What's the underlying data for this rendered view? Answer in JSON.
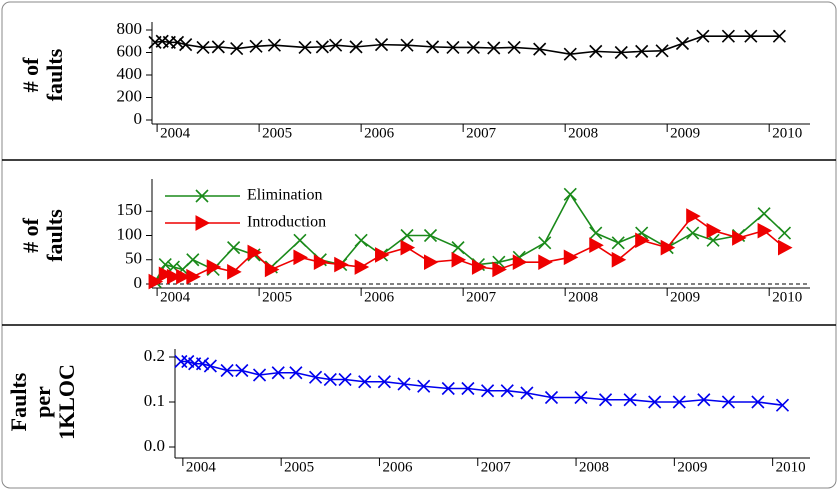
{
  "chart_data": [
    {
      "type": "line",
      "ylabel": [
        "# of",
        "faults"
      ],
      "x": [
        2003.98,
        2004.05,
        2004.12,
        2004.2,
        2004.28,
        2004.45,
        2004.6,
        2004.78,
        2004.97,
        2005.15,
        2005.45,
        2005.62,
        2005.75,
        2005.95,
        2006.2,
        2006.45,
        2006.7,
        2006.9,
        2007.1,
        2007.3,
        2007.5,
        2007.75,
        2008.05,
        2008.3,
        2008.55,
        2008.75,
        2008.95,
        2009.15,
        2009.35,
        2009.6,
        2009.82,
        2010.1
      ],
      "series": [
        {
          "name": null,
          "color": "#000000",
          "marker": "x",
          "values": [
            690,
            700,
            690,
            690,
            670,
            645,
            650,
            635,
            655,
            665,
            645,
            650,
            665,
            650,
            670,
            665,
            650,
            645,
            645,
            640,
            645,
            630,
            585,
            610,
            600,
            610,
            615,
            680,
            745,
            745,
            745,
            745
          ]
        }
      ],
      "xlim": [
        2003.95,
        2010.4
      ],
      "xticks": [
        2004,
        2005,
        2006,
        2007,
        2008,
        2009,
        2010
      ],
      "ylim": [
        0,
        800
      ],
      "yticks": [
        0,
        200,
        400,
        600,
        800
      ]
    },
    {
      "type": "line",
      "ylabel": [
        "# of",
        "faults"
      ],
      "x": [
        2003.98,
        2004.08,
        2004.16,
        2004.25,
        2004.35,
        2004.55,
        2004.75,
        2004.95,
        2005.12,
        2005.4,
        2005.6,
        2005.8,
        2006.0,
        2006.2,
        2006.45,
        2006.68,
        2006.95,
        2007.15,
        2007.35,
        2007.55,
        2007.8,
        2008.05,
        2008.3,
        2008.52,
        2008.75,
        2009.0,
        2009.25,
        2009.45,
        2009.7,
        2009.95,
        2010.15
      ],
      "series": [
        {
          "name": "Elimination",
          "color": "#1a8a1a",
          "marker": "x",
          "values": [
            5,
            40,
            35,
            30,
            50,
            30,
            75,
            60,
            35,
            90,
            50,
            40,
            90,
            60,
            100,
            100,
            75,
            40,
            45,
            55,
            85,
            185,
            105,
            85,
            105,
            75,
            105,
            90,
            100,
            145,
            105
          ]
        },
        {
          "name": "Introduction",
          "color": "#ee0000",
          "marker": "triangle",
          "values": [
            5,
            20,
            15,
            15,
            15,
            35,
            25,
            65,
            30,
            55,
            45,
            40,
            35,
            60,
            75,
            45,
            50,
            35,
            30,
            45,
            45,
            55,
            80,
            50,
            90,
            75,
            140,
            110,
            95,
            110,
            75
          ]
        }
      ],
      "xlim": [
        2003.95,
        2010.4
      ],
      "xticks": [
        2004,
        2005,
        2006,
        2007,
        2008,
        2009,
        2010
      ],
      "ylim": [
        0,
        200
      ],
      "yticks": [
        0,
        50,
        100,
        150
      ]
    },
    {
      "type": "line",
      "ylabel": [
        "Faults",
        "per",
        "1KLOC"
      ],
      "x": [
        2003.98,
        2004.05,
        2004.12,
        2004.2,
        2004.28,
        2004.45,
        2004.6,
        2004.78,
        2004.97,
        2005.15,
        2005.35,
        2005.5,
        2005.65,
        2005.85,
        2006.05,
        2006.25,
        2006.45,
        2006.7,
        2006.9,
        2007.1,
        2007.3,
        2007.5,
        2007.75,
        2008.05,
        2008.3,
        2008.55,
        2008.8,
        2009.05,
        2009.3,
        2009.55,
        2009.85,
        2010.1
      ],
      "series": [
        {
          "name": null,
          "color": "#0000ee",
          "marker": "x",
          "values": [
            0.19,
            0.19,
            0.185,
            0.185,
            0.18,
            0.17,
            0.17,
            0.16,
            0.165,
            0.165,
            0.155,
            0.15,
            0.15,
            0.145,
            0.145,
            0.14,
            0.135,
            0.13,
            0.13,
            0.125,
            0.125,
            0.12,
            0.11,
            0.11,
            0.105,
            0.105,
            0.1,
            0.1,
            0.105,
            0.1,
            0.1,
            0.093
          ]
        }
      ],
      "xlim": [
        2003.92,
        2010.38
      ],
      "xticks": [
        2004,
        2005,
        2006,
        2007,
        2008,
        2009,
        2010
      ],
      "ylim": [
        0,
        0.2
      ],
      "yticks": [
        {
          "value": 0,
          "label": "0.0"
        },
        0.1,
        0.2
      ]
    }
  ]
}
